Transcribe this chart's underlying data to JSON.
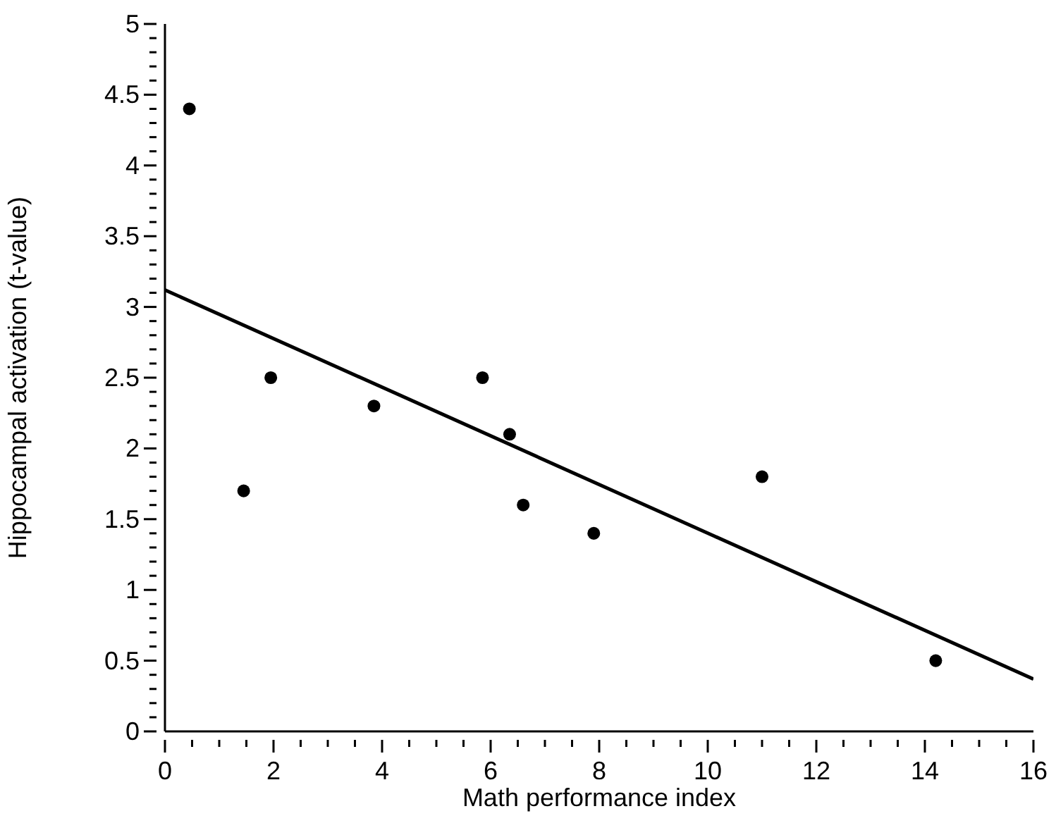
{
  "chart_data": {
    "type": "scatter",
    "xlabel": "Math performance index",
    "ylabel": "Hippocampal activation (t-value)",
    "xlim": [
      0,
      16
    ],
    "ylim": [
      0,
      5
    ],
    "xticks": [
      0,
      {
        "value": 0.5,
        "label": null
      },
      2,
      {
        "value": 1,
        "label": null
      },
      {
        "value": 1.5,
        "label": null
      },
      {
        "value": 2.5,
        "label": null
      },
      {
        "value": 3,
        "label": null
      },
      {
        "value": 3.5,
        "label": null
      },
      4,
      {
        "value": 4.5,
        "label": null
      },
      {
        "value": 5,
        "label": null
      },
      {
        "value": 5.5,
        "label": null
      },
      6,
      {
        "value": 6.5,
        "label": null
      },
      {
        "value": 7,
        "label": null
      },
      {
        "value": 7.5,
        "label": null
      },
      8,
      {
        "value": 8.5,
        "label": null
      },
      {
        "value": 9,
        "label": null
      },
      {
        "value": 9.5,
        "label": null
      },
      10,
      {
        "value": 10.5,
        "label": null
      },
      {
        "value": 11,
        "label": null
      },
      {
        "value": 11.5,
        "label": null
      },
      12,
      {
        "value": 12.5,
        "label": null
      },
      {
        "value": 13,
        "label": null
      },
      {
        "value": 13.5,
        "label": null
      },
      14,
      {
        "value": 14.5,
        "label": null
      },
      {
        "value": 15,
        "label": null
      },
      {
        "value": 15.5,
        "label": null
      },
      16
    ],
    "yticks": [
      0,
      0.5,
      1,
      1.5,
      2,
      2.5,
      3,
      3.5,
      4,
      4.5,
      5,
      {
        "value": 0.1,
        "label": null
      },
      {
        "value": 0.2,
        "label": null
      },
      {
        "value": 0.3,
        "label": null
      },
      {
        "value": 0.4,
        "label": null
      },
      {
        "value": 0.6,
        "label": null
      },
      {
        "value": 0.7,
        "label": null
      },
      {
        "value": 0.8,
        "label": null
      },
      {
        "value": 0.9,
        "label": null
      },
      {
        "value": 1.1,
        "label": null
      },
      {
        "value": 1.2,
        "label": null
      },
      {
        "value": 1.3,
        "label": null
      },
      {
        "value": 1.4,
        "label": null
      },
      {
        "value": 1.6,
        "label": null
      },
      {
        "value": 1.7,
        "label": null
      },
      {
        "value": 1.8,
        "label": null
      },
      {
        "value": 1.9,
        "label": null
      },
      {
        "value": 2.1,
        "label": null
      },
      {
        "value": 2.2,
        "label": null
      },
      {
        "value": 2.3,
        "label": null
      },
      {
        "value": 2.4,
        "label": null
      },
      {
        "value": 2.6,
        "label": null
      },
      {
        "value": 2.7,
        "label": null
      },
      {
        "value": 2.8,
        "label": null
      },
      {
        "value": 2.9,
        "label": null
      },
      {
        "value": 3.1,
        "label": null
      },
      {
        "value": 3.2,
        "label": null
      },
      {
        "value": 3.3,
        "label": null
      },
      {
        "value": 3.4,
        "label": null
      },
      {
        "value": 3.6,
        "label": null
      },
      {
        "value": 3.7,
        "label": null
      },
      {
        "value": 3.8,
        "label": null
      },
      {
        "value": 3.9,
        "label": null
      },
      {
        "value": 4.1,
        "label": null
      },
      {
        "value": 4.2,
        "label": null
      },
      {
        "value": 4.3,
        "label": null
      },
      {
        "value": 4.4,
        "label": null
      },
      {
        "value": 4.6,
        "label": null
      },
      {
        "value": 4.7,
        "label": null
      },
      {
        "value": 4.8,
        "label": null
      },
      {
        "value": 4.9,
        "label": null
      }
    ],
    "grid": false,
    "legend": false,
    "marker": "circle",
    "series": [
      {
        "type": "scatter",
        "color": "#000000",
        "x": [
          0.45,
          1.45,
          1.95,
          3.85,
          5.85,
          6.35,
          6.6,
          7.9,
          11.0,
          14.2
        ],
        "values": [
          4.4,
          1.7,
          2.5,
          2.3,
          2.5,
          2.1,
          1.6,
          1.4,
          1.8,
          0.5
        ]
      },
      {
        "type": "line",
        "color": "#000000",
        "x": [
          0,
          16
        ],
        "values": [
          3.12,
          0.37
        ],
        "marker": "none",
        "line_style": "solid"
      }
    ]
  }
}
